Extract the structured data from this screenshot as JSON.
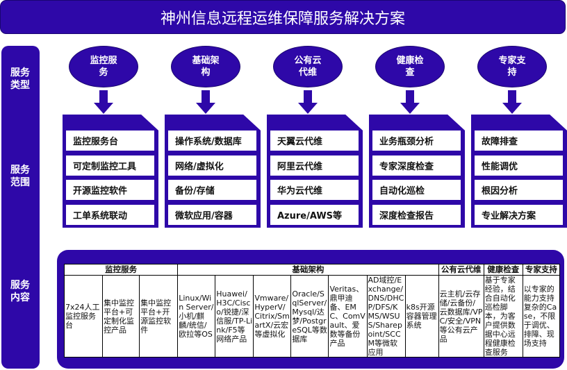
{
  "title": "神州信息远程运维保障服务解决方案",
  "side_labels": [
    "服务类型",
    "服务范围",
    "服务内容"
  ],
  "colors": {
    "primary": "#2e08a8",
    "white": "#ffffff"
  },
  "categories": [
    {
      "name": "监控服务",
      "items": [
        "监控服务台",
        "可定制监控工具",
        "开源监控软件",
        "工单系统联动"
      ]
    },
    {
      "name": "基础架构",
      "items": [
        "操作系统/数据库",
        "网络/虚拟化",
        "备份/存储",
        "微软应用/容器"
      ]
    },
    {
      "name": "公有云代维",
      "items": [
        "天翼云代维",
        "阿里云代维",
        "华为云代维",
        "Azure/AWS等"
      ]
    },
    {
      "name": "健康检查",
      "items": [
        "业务瓶颈分析",
        "专家深度检查",
        "自动化巡检",
        "深度检查报告"
      ]
    },
    {
      "name": "专家支持",
      "items": [
        "故障排查",
        "性能调优",
        "根因分析",
        "专业解决方案"
      ]
    }
  ],
  "table": {
    "headers": [
      "监控服务",
      "基础架构",
      "公有云代维",
      "健康检查",
      "专家支持"
    ],
    "cells": [
      "7x24人工监控服务台",
      "集中监控平台+可定制化监控产品",
      "集中监控平台+开源监控软件",
      "Linux/Win Server/小机/麒麟/统信/欧拉等OS",
      "Huawei/H3C/Cisco/锐捷/深信服/TP-Link/F5等网络产品",
      "Vmware/HyperV/Citrix/SmartX/云宏等虚拟化",
      "Oracle/SqlServer/Mysql/达梦/PostgreSQL等数据库",
      "Veritas、鼎甲迪备、EMC、ComVault、爱数等备份产品",
      "AD域控/Exchange/DNS/DHCP/DFS/KMS/WSUS/Sharepoint/SCCM等微软应用",
      "k8s开源容器管理系统",
      "云主机/云存储/云备份/云数据库/VPC/安全/VPN等公有云产品",
      "基于专家经验，结合自动化巡检脚本，为客户提供数据中心远程健康检查服务",
      "以专家的能力支持复杂的Case，不限于调优、排障、现场支持"
    ]
  }
}
